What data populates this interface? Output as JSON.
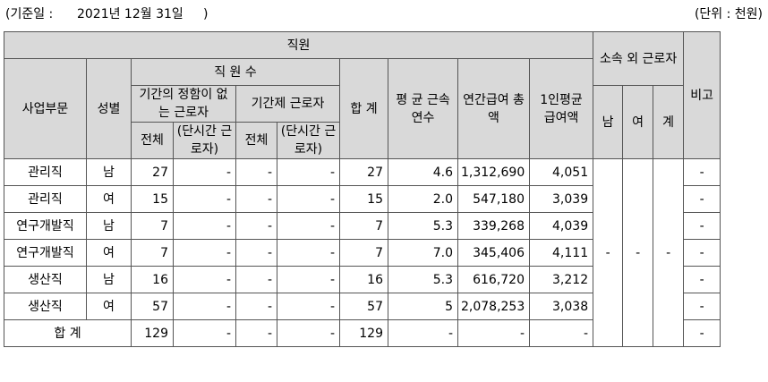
{
  "header_line": {
    "basis": "(기준일 :      2021년 12월 31일     )",
    "unit": "(단위 : 천원)"
  },
  "headers": {
    "employees": "직원",
    "affiliated_outside": "소속 외 근로자",
    "remarks": "비고",
    "business_division": "사업부문",
    "gender": "성별",
    "headcount": "직 원 수",
    "avg_tenure": "평 균 근속연수",
    "annual_total_pay": "연간급여 총 액",
    "avg_pay_per_person": "1인평균 급여액",
    "male": "남",
    "female": "여",
    "total_short": "계",
    "indefinite_term": "기간의 정함이 없는 근로자",
    "fixed_term": "기간제 근로자",
    "sum": "합 계",
    "all": "전체",
    "part_time": "(단시간 근로자)"
  },
  "rows": [
    {
      "division": "관리직",
      "gender": "남",
      "perm_total": "27",
      "perm_part": "-",
      "fixed_total": "-",
      "fixed_part": "-",
      "sum": "27",
      "tenure": "4.6",
      "total_pay": "1,312,690",
      "avg_pay": "4,051",
      "remark": "-"
    },
    {
      "division": "관리직",
      "gender": "여",
      "perm_total": "15",
      "perm_part": "-",
      "fixed_total": "-",
      "fixed_part": "-",
      "sum": "15",
      "tenure": "2.0",
      "total_pay": "547,180",
      "avg_pay": "3,039",
      "remark": "-"
    },
    {
      "division": "연구개발직",
      "gender": "남",
      "perm_total": "7",
      "perm_part": "-",
      "fixed_total": "-",
      "fixed_part": "-",
      "sum": "7",
      "tenure": "5.3",
      "total_pay": "339,268",
      "avg_pay": "4,039",
      "remark": "-"
    },
    {
      "division": "연구개발직",
      "gender": "여",
      "perm_total": "7",
      "perm_part": "-",
      "fixed_total": "-",
      "fixed_part": "-",
      "sum": "7",
      "tenure": "7.0",
      "total_pay": "345,406",
      "avg_pay": "4,111",
      "remark": "-"
    },
    {
      "division": "생산직",
      "gender": "남",
      "perm_total": "16",
      "perm_part": "-",
      "fixed_total": "-",
      "fixed_part": "-",
      "sum": "16",
      "tenure": "5.3",
      "total_pay": "616,720",
      "avg_pay": "3,212",
      "remark": "-"
    },
    {
      "division": "생산직",
      "gender": "여",
      "perm_total": "57",
      "perm_part": "-",
      "fixed_total": "-",
      "fixed_part": "-",
      "sum": "57",
      "tenure": "5",
      "total_pay": "2,078,253",
      "avg_pay": "3,038",
      "remark": "-"
    }
  ],
  "total_row": {
    "label": "합 계",
    "perm_total": "129",
    "perm_part": "-",
    "fixed_total": "-",
    "fixed_part": "-",
    "sum": "129",
    "tenure": "-",
    "total_pay": "-",
    "avg_pay": "-",
    "remark": "-"
  },
  "outside": {
    "male": "-",
    "female": "-",
    "total": "-"
  }
}
